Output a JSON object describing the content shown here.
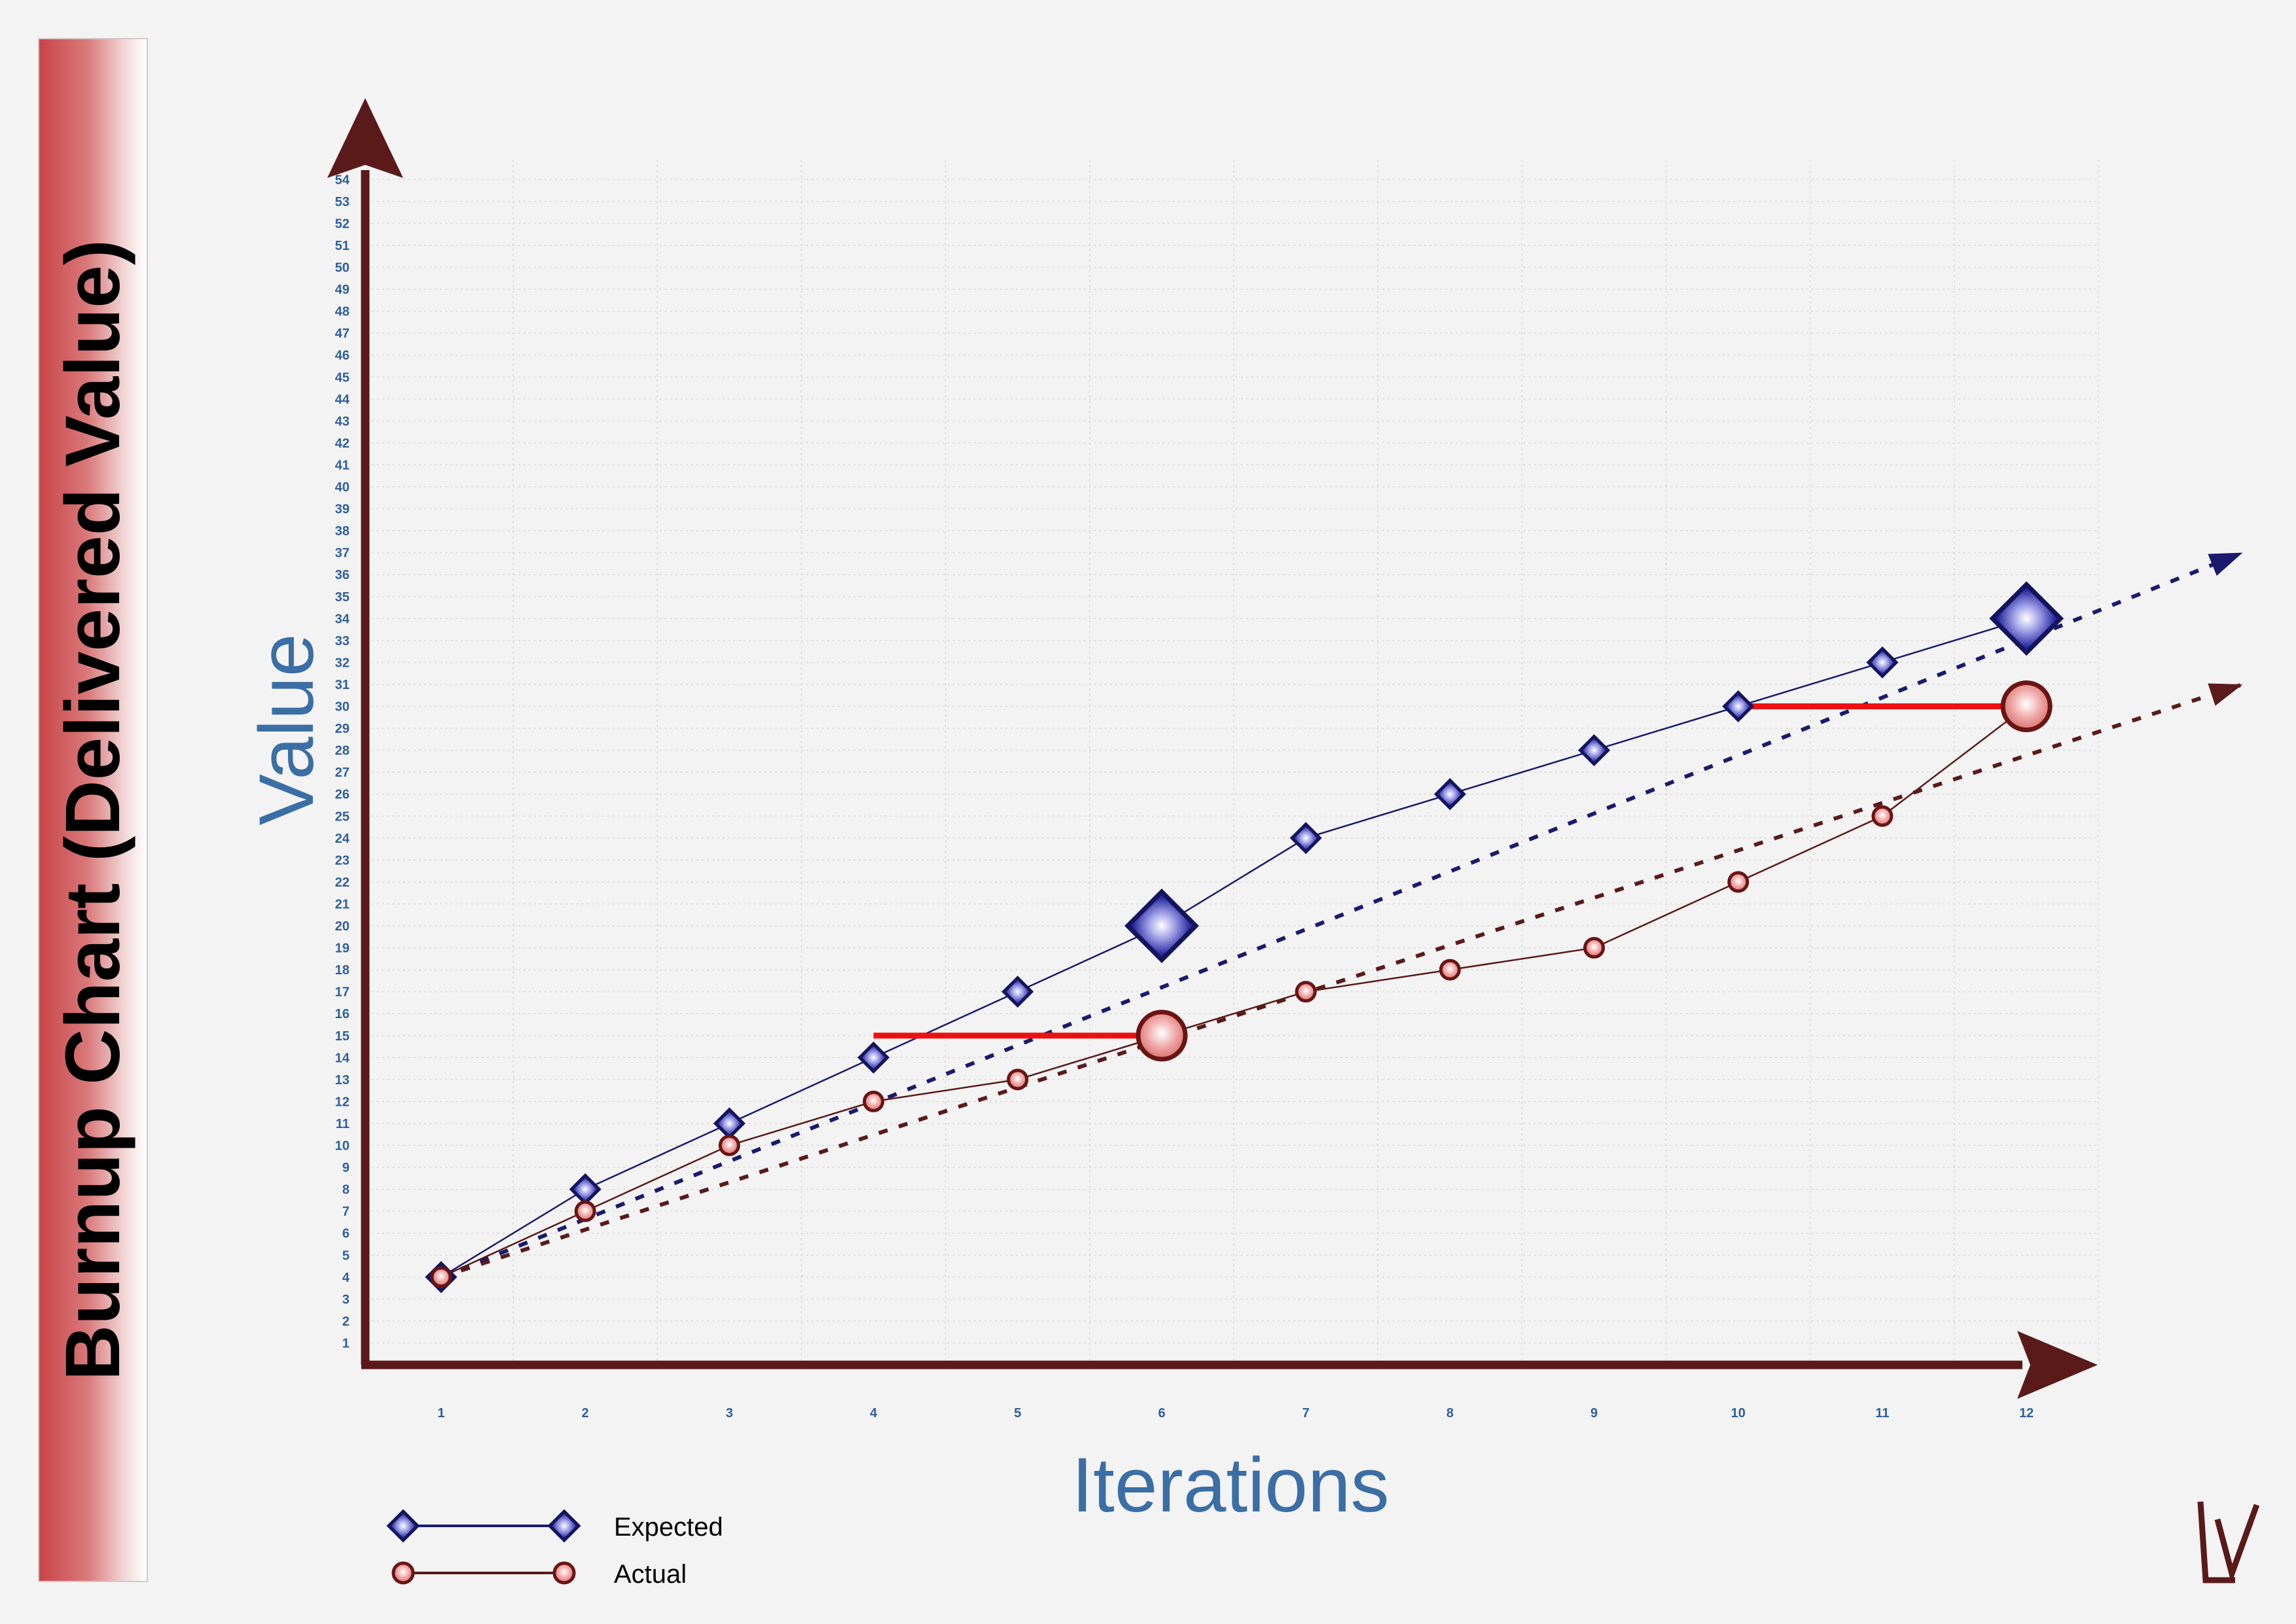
{
  "chart_data": {
    "type": "line",
    "title": "Burnup Chart (Delivered Value)",
    "xlabel": "Iterations",
    "ylabel": "Value",
    "x": [
      1,
      2,
      3,
      4,
      5,
      6,
      7,
      8,
      9,
      10,
      11,
      12
    ],
    "xlim": [
      0.5,
      12.5
    ],
    "ylim": [
      0,
      54
    ],
    "y_ticks": [
      1,
      2,
      3,
      4,
      5,
      6,
      7,
      8,
      9,
      10,
      11,
      12,
      13,
      14,
      15,
      16,
      17,
      18,
      19,
      20,
      21,
      22,
      23,
      24,
      25,
      26,
      27,
      28,
      29,
      30,
      31,
      32,
      33,
      34,
      35,
      36,
      37,
      38,
      39,
      40,
      41,
      42,
      43,
      44,
      45,
      46,
      47,
      48,
      49,
      50,
      51,
      52,
      53,
      54
    ],
    "grid": true,
    "legend_position": "bottom-left",
    "series": [
      {
        "name": "Expected",
        "marker": "diamond",
        "color": "#1a1a6e",
        "values": [
          4,
          8,
          11,
          14,
          17,
          20,
          24,
          26,
          28,
          30,
          32,
          34
        ],
        "highlighted_points": [
          6,
          12
        ],
        "trend_line": {
          "from": [
            1,
            4
          ],
          "to": [
            13.5,
            37
          ]
        }
      },
      {
        "name": "Actual",
        "marker": "circle",
        "color": "#5a1a1a",
        "values": [
          4,
          7,
          10,
          12,
          13,
          15,
          17,
          18,
          19,
          22,
          25,
          30
        ],
        "highlighted_points": [
          6,
          12
        ],
        "trend_line": {
          "from": [
            1,
            4
          ],
          "to": [
            13.5,
            31
          ]
        }
      }
    ],
    "annotations": [
      {
        "type": "lag_line",
        "value": 15,
        "from_x": 4,
        "to_x": 6,
        "color": "#ee1111"
      },
      {
        "type": "lag_line",
        "value": 30,
        "from_x": 10,
        "to_x": 12,
        "color": "#ee1111"
      }
    ]
  },
  "colors": {
    "axis": "#5a1a1a",
    "expected": "#1a1a6e",
    "actual": "#5a1a1a",
    "lag": "#ee1111",
    "label_blue": "#3a6ea5"
  },
  "logo": {
    "icon": "lv-logo-icon"
  }
}
